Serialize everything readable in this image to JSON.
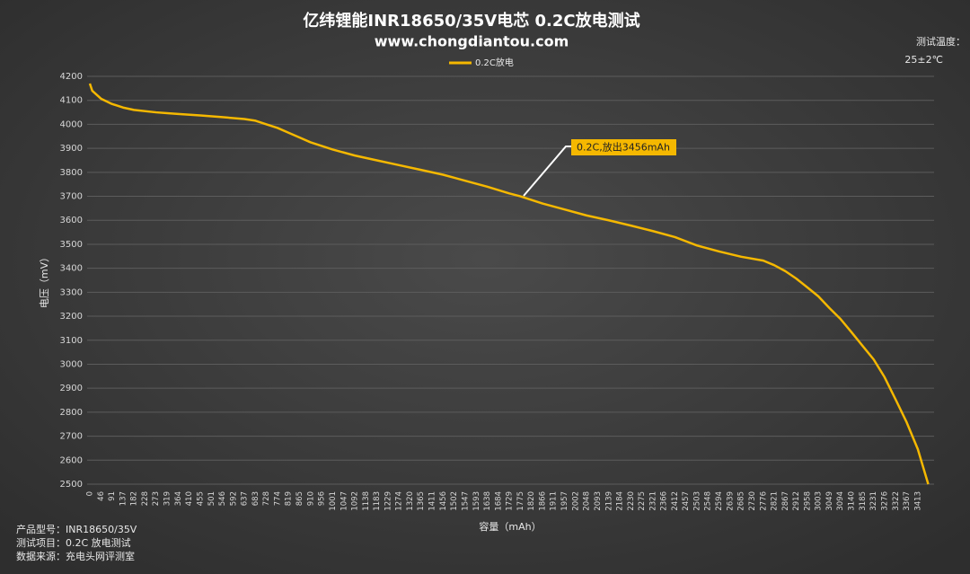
{
  "chart_data": {
    "type": "line",
    "title": "亿纬锂能INR18650/35V电芯  0.2C放电测试",
    "subtitle": "www.chongdiantou.com",
    "x_label": "容量（mAh）",
    "y_label": "电压（mV）",
    "annotation": "0.2C,放出3456mAh",
    "temperature_label": "测试温度：",
    "temperature_value": "25±2℃",
    "notes": [
      "产品型号：INR18650/35V",
      "测试项目：0.2C 放电测试",
      "数据来源：充电头网评测室"
    ],
    "legend": "top",
    "grid": true,
    "x": [
      0,
      10,
      46,
      91,
      137,
      182,
      273,
      364,
      455,
      546,
      637,
      683,
      728,
      774,
      819,
      865,
      910,
      1001,
      1092,
      1183,
      1274,
      1365,
      1456,
      1547,
      1638,
      1729,
      1775,
      1866,
      1957,
      2048,
      2139,
      2230,
      2321,
      2412,
      2503,
      2594,
      2685,
      2776,
      2821,
      2867,
      2912,
      2958,
      3003,
      3049,
      3094,
      3140,
      3185,
      3231,
      3276,
      3322,
      3367,
      3413,
      3456
    ],
    "series": [
      {
        "name": "0.2C放电",
        "color": "#f5b800",
        "values": [
          4170,
          4140,
          4107,
          4085,
          4070,
          4060,
          4050,
          4043,
          4037,
          4030,
          4022,
          4015,
          4000,
          3985,
          3965,
          3945,
          3925,
          3895,
          3870,
          3850,
          3830,
          3810,
          3790,
          3765,
          3740,
          3712,
          3700,
          3670,
          3645,
          3620,
          3600,
          3578,
          3555,
          3530,
          3495,
          3470,
          3448,
          3432,
          3413,
          3388,
          3357,
          3320,
          3283,
          3234,
          3189,
          3133,
          3077,
          3020,
          2946,
          2852,
          2758,
          2646,
          2500
        ]
      }
    ],
    "xlim": [
      0,
      3456
    ],
    "xticks": [
      0,
      46,
      91,
      137,
      182,
      228,
      273,
      319,
      364,
      410,
      455,
      501,
      546,
      592,
      637,
      683,
      728,
      774,
      819,
      865,
      910,
      956,
      1001,
      1047,
      1092,
      1138,
      1183,
      1229,
      1274,
      1320,
      1365,
      1411,
      1456,
      1502,
      1547,
      1593,
      1638,
      1684,
      1729,
      1775,
      1820,
      1866,
      1911,
      1957,
      2002,
      2048,
      2093,
      2139,
      2184,
      2230,
      2275,
      2321,
      2366,
      2412,
      2457,
      2503,
      2548,
      2594,
      2639,
      2685,
      2730,
      2776,
      2821,
      2867,
      2912,
      2958,
      3003,
      3049,
      3094,
      3140,
      3185,
      3231,
      3276,
      3322,
      3367,
      3413
    ],
    "ylim": [
      2500,
      4200
    ],
    "yticks": [
      2500,
      2600,
      2700,
      2800,
      2900,
      3000,
      3100,
      3200,
      3300,
      3400,
      3500,
      3600,
      3700,
      3800,
      3900,
      4000,
      4100,
      4200
    ]
  }
}
